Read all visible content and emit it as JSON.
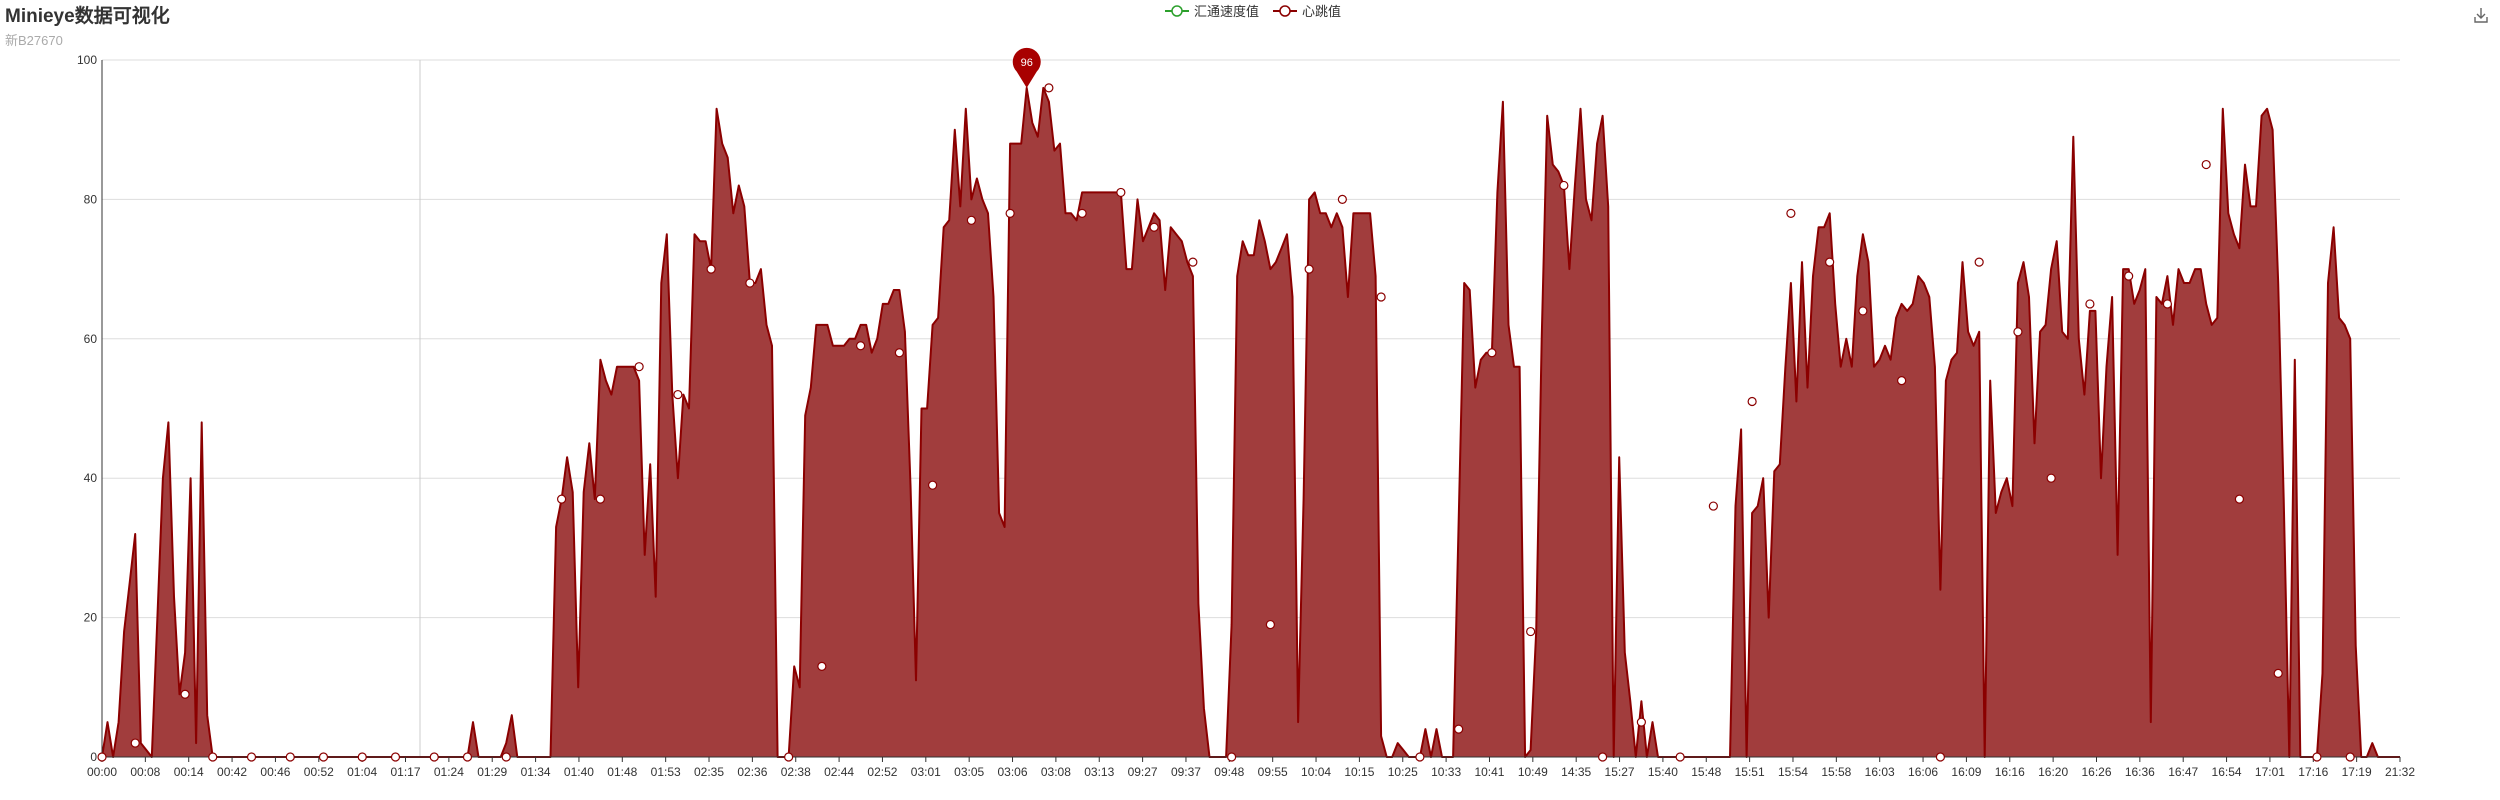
{
  "title": "Minieye数据可视化",
  "subtitle": "新B27670",
  "legend": [
    {
      "name": "汇通速度值",
      "color": "#2ca02c"
    },
    {
      "name": "心跳值",
      "color": "#8b0000"
    }
  ],
  "download_icon": "download-icon",
  "colors": {
    "series": "#8b0000",
    "area": "#a13d3d",
    "axis": "#333333",
    "grid": "#dddddd"
  },
  "chart_data": {
    "type": "area",
    "ylim": [
      0,
      100
    ],
    "yticks": [
      0,
      20,
      40,
      60,
      80,
      100
    ],
    "xlabels": [
      "00:00",
      "00:08",
      "00:14",
      "00:42",
      "00:46",
      "00:52",
      "01:04",
      "01:17",
      "01:24",
      "01:29",
      "01:34",
      "01:40",
      "01:48",
      "01:53",
      "02:35",
      "02:36",
      "02:38",
      "02:44",
      "02:52",
      "03:01",
      "03:05",
      "03:06",
      "03:08",
      "03:13",
      "09:27",
      "09:37",
      "09:48",
      "09:55",
      "10:04",
      "10:15",
      "10:25",
      "10:33",
      "10:41",
      "10:49",
      "14:35",
      "15:27",
      "15:40",
      "15:48",
      "15:51",
      "15:54",
      "15:58",
      "16:03",
      "16:06",
      "16:09",
      "16:16",
      "16:20",
      "16:26",
      "16:36",
      "16:47",
      "16:54",
      "17:01",
      "17:16",
      "17:19",
      "21:32"
    ],
    "grid": true,
    "legend_position": "top-center",
    "max_marker": {
      "value": 96
    },
    "series": [
      {
        "name": "汇通速度值",
        "values": []
      },
      {
        "name": "心跳值",
        "values": [
          0,
          5,
          0,
          5,
          18,
          25,
          32,
          2,
          1,
          0,
          20,
          40,
          48,
          23,
          9,
          15,
          40,
          2,
          48,
          6,
          0,
          0,
          0,
          0,
          0,
          0,
          0,
          0,
          0,
          0,
          0,
          0,
          0,
          0,
          0,
          0,
          0,
          0,
          0,
          0,
          0,
          0,
          0,
          0,
          0,
          0,
          0,
          0,
          0,
          0,
          0,
          0,
          0,
          0,
          0,
          0,
          0,
          0,
          0,
          0,
          0,
          0,
          0,
          0,
          0,
          0,
          0,
          5,
          0,
          0,
          0,
          0,
          0,
          2,
          6,
          0,
          0,
          0,
          0,
          0,
          0,
          0,
          33,
          37,
          43,
          38,
          10,
          38,
          45,
          37,
          57,
          54,
          52,
          56,
          56,
          56,
          56,
          54,
          29,
          42,
          23,
          68,
          75,
          52,
          40,
          52,
          50,
          75,
          74,
          74,
          70,
          93,
          88,
          86,
          78,
          82,
          79,
          68,
          68,
          70,
          62,
          59,
          0,
          0,
          0,
          13,
          10,
          49,
          53,
          62,
          62,
          62,
          59,
          59,
          59,
          60,
          60,
          62,
          62,
          58,
          60,
          65,
          65,
          67,
          67,
          61,
          39,
          11,
          50,
          50,
          62,
          63,
          76,
          77,
          90,
          79,
          93,
          80,
          83,
          80,
          78,
          66,
          35,
          33,
          88,
          88,
          88,
          96,
          91,
          89,
          96,
          94,
          87,
          88,
          78,
          78,
          77,
          81,
          81,
          81,
          81,
          81,
          81,
          81,
          81,
          70,
          70,
          80,
          74,
          76,
          78,
          77,
          67,
          76,
          75,
          74,
          71,
          69,
          22,
          7,
          0,
          0,
          0,
          0,
          19,
          69,
          74,
          72,
          72,
          77,
          74,
          70,
          71,
          73,
          75,
          66,
          5,
          37,
          80,
          81,
          78,
          78,
          76,
          78,
          76,
          66,
          78,
          78,
          78,
          78,
          69,
          3,
          0,
          0,
          2,
          1,
          0,
          0,
          0,
          4,
          0,
          4,
          0,
          0,
          0,
          34,
          68,
          67,
          53,
          57,
          58,
          58,
          81,
          94,
          62,
          56,
          56,
          0,
          1,
          18,
          60,
          92,
          85,
          84,
          82,
          70,
          82,
          93,
          80,
          77,
          88,
          92,
          79,
          0,
          43,
          15,
          8,
          0,
          8,
          0,
          5,
          0,
          0,
          0,
          0,
          0,
          0,
          0,
          0,
          0,
          0,
          0,
          0,
          0,
          0,
          36,
          47,
          0,
          35,
          36,
          40,
          20,
          41,
          42,
          56,
          68,
          51,
          71,
          53,
          69,
          76,
          76,
          78,
          65,
          56,
          60,
          56,
          69,
          75,
          71,
          56,
          57,
          59,
          57,
          63,
          65,
          64,
          65,
          69,
          68,
          66,
          56,
          24,
          54,
          57,
          58,
          71,
          61,
          59,
          61,
          0,
          54,
          35,
          38,
          40,
          36,
          68,
          71,
          66,
          45,
          61,
          62,
          70,
          74,
          61,
          60,
          89,
          60,
          52,
          64,
          64,
          40,
          56,
          66,
          29,
          70,
          70,
          65,
          67,
          70,
          5,
          66,
          65,
          69,
          62,
          70,
          68,
          68,
          70,
          70,
          65,
          62,
          63,
          93,
          78,
          75,
          73,
          85,
          79,
          79,
          92,
          93,
          90,
          68,
          37,
          0,
          57,
          0,
          0,
          0,
          0,
          12,
          68,
          76,
          63,
          62,
          60,
          16,
          0,
          0,
          2,
          0,
          0,
          0,
          0,
          0
        ]
      }
    ],
    "circle_markers": [
      [
        0,
        0
      ],
      [
        6,
        2
      ],
      [
        15,
        9
      ],
      [
        20,
        0
      ],
      [
        27,
        0
      ],
      [
        34,
        0
      ],
      [
        40,
        0
      ],
      [
        47,
        0
      ],
      [
        53,
        0
      ],
      [
        60,
        0
      ],
      [
        66,
        0
      ],
      [
        73,
        0
      ],
      [
        83,
        37
      ],
      [
        90,
        37
      ],
      [
        97,
        56
      ],
      [
        104,
        52
      ],
      [
        110,
        70
      ],
      [
        117,
        68
      ],
      [
        124,
        0
      ],
      [
        130,
        13
      ],
      [
        137,
        59
      ],
      [
        144,
        58
      ],
      [
        150,
        39
      ],
      [
        157,
        77
      ],
      [
        164,
        78
      ],
      [
        171,
        96
      ],
      [
        177,
        78
      ],
      [
        184,
        81
      ],
      [
        190,
        76
      ],
      [
        197,
        71
      ],
      [
        204,
        0
      ],
      [
        211,
        19
      ],
      [
        218,
        70
      ],
      [
        224,
        80
      ],
      [
        231,
        66
      ],
      [
        238,
        0
      ],
      [
        245,
        4
      ],
      [
        251,
        58
      ],
      [
        258,
        18
      ],
      [
        264,
        82
      ],
      [
        271,
        0
      ],
      [
        278,
        5
      ],
      [
        285,
        0
      ],
      [
        291,
        36
      ],
      [
        298,
        51
      ],
      [
        305,
        78
      ],
      [
        312,
        71
      ],
      [
        318,
        64
      ],
      [
        325,
        54
      ],
      [
        332,
        0
      ],
      [
        339,
        71
      ],
      [
        346,
        61
      ],
      [
        352,
        40
      ],
      [
        359,
        65
      ],
      [
        366,
        69
      ],
      [
        373,
        65
      ],
      [
        380,
        85
      ],
      [
        386,
        37
      ],
      [
        393,
        12
      ],
      [
        400,
        0
      ],
      [
        406,
        0
      ]
    ]
  }
}
